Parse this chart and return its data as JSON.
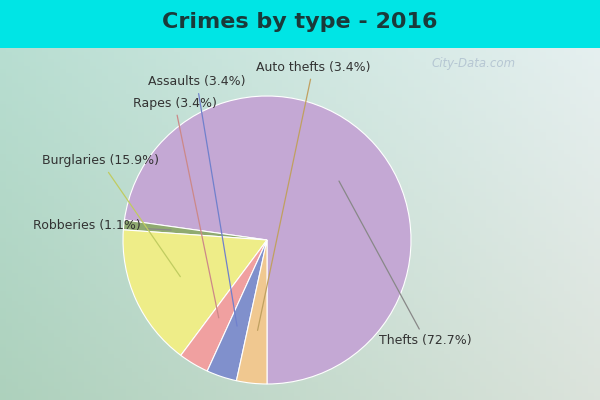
{
  "title": "Crimes by type - 2016",
  "slices": [
    {
      "label": "Thefts",
      "pct": 72.7,
      "color": "#C4A8D4"
    },
    {
      "label": "Robberies",
      "pct": 1.1,
      "color": "#8FAA70"
    },
    {
      "label": "Burglaries",
      "pct": 15.9,
      "color": "#EEED88"
    },
    {
      "label": "Rapes",
      "pct": 3.4,
      "color": "#F0A0A0"
    },
    {
      "label": "Assaults",
      "pct": 3.4,
      "color": "#8090CC"
    },
    {
      "label": "Auto thefts",
      "pct": 3.4,
      "color": "#F0C890"
    }
  ],
  "background_top": "#00E5E5",
  "background_main_top": "#E0F0F0",
  "background_main_bot": "#C8DCC8",
  "title_fontsize": 16,
  "label_fontsize": 9,
  "startangle": 270,
  "top_bar_height": 0.12,
  "watermark": "City-Data.com"
}
